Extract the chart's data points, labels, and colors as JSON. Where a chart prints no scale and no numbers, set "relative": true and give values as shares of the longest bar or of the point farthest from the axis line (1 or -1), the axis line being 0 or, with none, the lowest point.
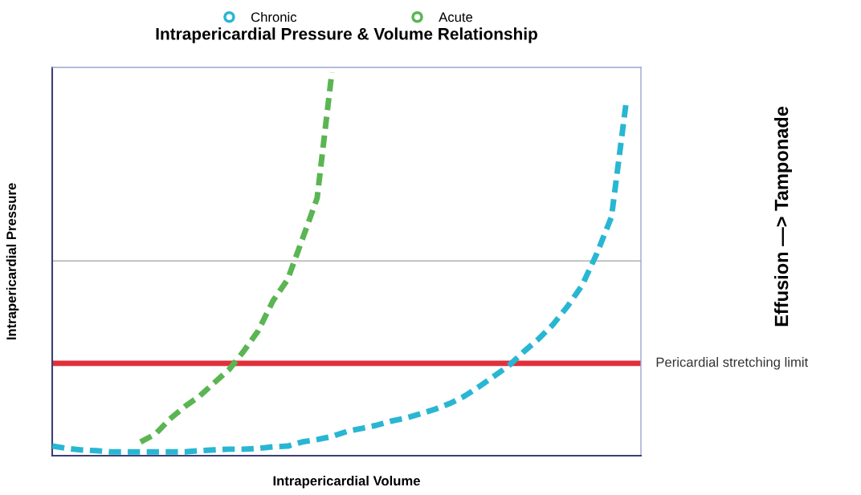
{
  "chart_data": {
    "type": "line",
    "title": "Intrapericardial Pressure & Volume Relationship",
    "xlabel": "Intrapericardial Volume",
    "ylabel": "Intrapericardial Pressure",
    "annotations": [
      "Effusion —> Tamponade"
    ],
    "relative": true,
    "categories": [
      null,
      null,
      null,
      null,
      null,
      null,
      null,
      null,
      null,
      null,
      null,
      null,
      null,
      null,
      null,
      null,
      null,
      null,
      null,
      null,
      null,
      null,
      null,
      null,
      null,
      null,
      null,
      null,
      null,
      null,
      null,
      null,
      null,
      null,
      null,
      null,
      null,
      null,
      null,
      null,
      null
    ],
    "series": [
      {
        "name": "Chronic",
        "color": "#29b6d3",
        "values": [
          0.025,
          0.019,
          0.015,
          0.013,
          0.01,
          0.01,
          0.01,
          0.01,
          0.01,
          0.01,
          0.013,
          0.015,
          0.017,
          0.017,
          0.019,
          0.023,
          0.025,
          0.036,
          0.042,
          0.05,
          0.063,
          0.071,
          0.079,
          0.09,
          0.098,
          0.109,
          0.121,
          0.136,
          0.155,
          0.18,
          0.207,
          0.234,
          0.27,
          0.303,
          0.341,
          0.389,
          0.444,
          0.527,
          0.623,
          0.923,
          null
        ]
      },
      {
        "name": "Acute",
        "color": "#5ab552",
        "values": [
          null,
          null,
          null,
          null,
          null,
          null,
          0.036,
          0.056,
          0.096,
          0.128,
          0.155,
          0.19,
          0.224,
          0.272,
          0.326,
          0.404,
          0.46,
          0.565,
          0.672,
          1.0,
          null,
          null,
          null,
          null,
          null,
          null,
          null,
          null,
          null,
          null,
          null,
          null,
          null,
          null,
          null,
          null,
          null,
          null,
          null,
          null,
          null
        ]
      }
    ],
    "ref_lines": [
      {
        "axis": "y",
        "value": 0.241,
        "label": "Pericardial stretching limit",
        "color": "#e0303a",
        "line_style": "solid"
      },
      {
        "axis": "y",
        "value": 0.508,
        "label": null,
        "color": "#b0b0b0",
        "line_style": "solid"
      }
    ],
    "line_style": "dashed",
    "marker": "none",
    "legend": "top"
  }
}
